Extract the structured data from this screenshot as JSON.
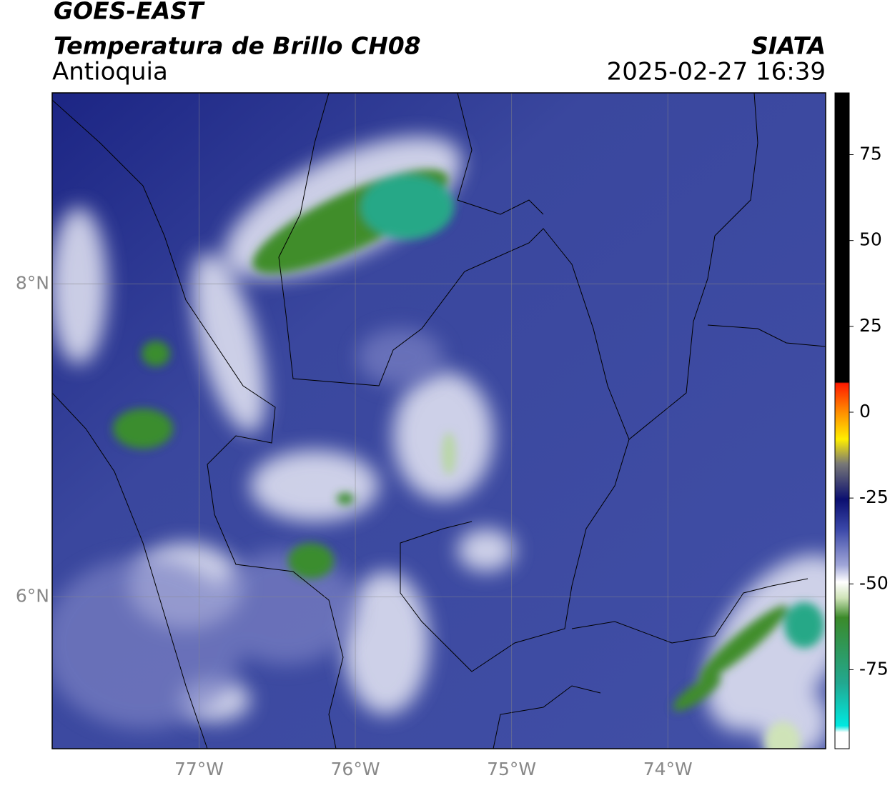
{
  "header": {
    "title": "GOES-EAST",
    "subtitle": "Temperatura de Brillo CH08",
    "region": "Antioquia",
    "source": "SIATA",
    "datetime": "2025-02-27 16:39"
  },
  "map": {
    "xlim": [
      -77.94,
      -72.99
    ],
    "ylim": [
      5.03,
      9.22
    ],
    "lat_ticks": [
      {
        "value": 8,
        "label": "8°N"
      },
      {
        "value": 6,
        "label": "6°N"
      }
    ],
    "lon_ticks": [
      {
        "value": -77,
        "label": "77°W"
      },
      {
        "value": -76,
        "label": "76°W"
      },
      {
        "value": -75,
        "label": "75°W"
      },
      {
        "value": -74,
        "label": "74°W"
      }
    ],
    "grid": true
  },
  "colorbar": {
    "range": [
      -98,
      93
    ],
    "ticks": [
      75,
      50,
      25,
      0,
      -25,
      -50,
      -75
    ]
  }
}
